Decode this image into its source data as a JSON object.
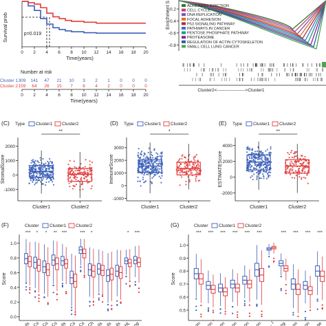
{
  "colors": {
    "cluster1": "#3a5fb8",
    "cluster2": "#e23b3b",
    "axis": "#222222",
    "grid": "#999999"
  },
  "chart_data": [
    {
      "type": "line",
      "panel": "survival",
      "ylabel": "Survival prob",
      "xlabel": "Time(years)",
      "xlim": [
        0,
        20
      ],
      "xticks": [
        0,
        2,
        4,
        6,
        8,
        10,
        12,
        14,
        16,
        18,
        20
      ],
      "pvalue": "p=0.019",
      "median_marker_x": 4,
      "series": [
        {
          "name": "Cluster 1",
          "x": [
            0,
            1,
            2,
            3,
            4,
            5,
            6,
            7,
            8,
            10,
            12,
            15,
            20
          ],
          "y": [
            1.0,
            0.9,
            0.8,
            0.62,
            0.5,
            0.42,
            0.38,
            0.35,
            0.33,
            0.31,
            0.3,
            0.3,
            0.3
          ]
        },
        {
          "name": "Cluster 2",
          "x": [
            0,
            1,
            2,
            3,
            4,
            5,
            6,
            7,
            8,
            10,
            12,
            15,
            20
          ],
          "y": [
            1.0,
            0.97,
            0.94,
            0.86,
            0.74,
            0.66,
            0.62,
            0.58,
            0.56,
            0.54,
            0.52,
            0.52,
            0.52
          ]
        }
      ],
      "risk_table": {
        "title": "Number at risk",
        "xlabel": "Time(years)",
        "rows": [
          {
            "name": "Cluster 1",
            "counts": [
              309,
              141,
              47,
              21,
              10,
              3,
              2,
              1,
              0,
              0,
              0
            ]
          },
          {
            "name": "Cluster 2",
            "counts": [
              159,
              64,
              26,
              15,
              7,
              6,
              4,
              2,
              0,
              0,
              0
            ]
          }
        ]
      }
    },
    {
      "type": "line",
      "panel": "gsea",
      "ylabel": "Enrichment S",
      "yticks": [
        -0.2,
        -0.4,
        -0.6,
        -0.8
      ],
      "xlabel_left": "Cluster2",
      "xlabel_right": "Cluster1",
      "arrow": "<------------------->",
      "legend": [
        {
          "label": "ADHERENS JUNCTION",
          "color": "#2f7a2f"
        },
        {
          "label": "CELL CYCLE",
          "color": "#c53b7a"
        },
        {
          "label": "DNA REPLICATION",
          "color": "#7a4fb2"
        },
        {
          "label": "FOCAL ADHESION",
          "color": "#d86f2a"
        },
        {
          "label": "P53 SIGNALING PATHWAY",
          "color": "#b03030"
        },
        {
          "label": "PATHWAYS IN CANCER",
          "color": "#3a74c9"
        },
        {
          "label": "PENTOSE PHOSPHATE PATHWAY",
          "color": "#1e9a8a"
        },
        {
          "label": "PROTEASOME",
          "color": "#8a2a8a"
        },
        {
          "label": "REGULATION OF ACTIN CYTOSKELETON",
          "color": "#2a5fa0"
        },
        {
          "label": "SMALL CELL LUNG CANCER",
          "color": "#4fa34f"
        }
      ]
    },
    {
      "type": "box",
      "panel": "C",
      "label": "(C)",
      "legend_title": "Type",
      "legend": [
        "Cluster1",
        "Cluster2"
      ],
      "ylabel": "StromalScore",
      "categories": [
        "Cluster1",
        "Cluster2"
      ],
      "significance": "**",
      "ylim": [
        -1800,
        2600
      ],
      "yticks": [
        -1000,
        0,
        1000,
        2000
      ],
      "boxes": [
        {
          "q1": -150,
          "median": 250,
          "q3": 650,
          "min": -1300,
          "max": 1700
        },
        {
          "q1": -450,
          "median": 50,
          "q3": 450,
          "min": -1600,
          "max": 1600
        }
      ]
    },
    {
      "type": "box",
      "panel": "D",
      "label": "(D)",
      "legend_title": "Type",
      "legend": [
        "Cluster1",
        "Cluster2"
      ],
      "ylabel": "ImmuneScore",
      "categories": [
        "Cluster1",
        "Cluster2"
      ],
      "significance": "*",
      "ylim": [
        -1200,
        3800
      ],
      "yticks": [
        -1000,
        0,
        1000,
        2000,
        3000
      ],
      "boxes": [
        {
          "q1": 1050,
          "median": 1550,
          "q3": 2050,
          "min": -600,
          "max": 3400
        },
        {
          "q1": 850,
          "median": 1350,
          "q3": 1850,
          "min": -300,
          "max": 3300
        }
      ]
    },
    {
      "type": "box",
      "panel": "E",
      "label": "(E)",
      "legend_title": "Type",
      "legend": [
        "Cluster1",
        "Cluster2"
      ],
      "ylabel": "ESTIMATEScore",
      "categories": [
        "Cluster1",
        "Cluster2"
      ],
      "significance": "**",
      "ylim": [
        -3000,
        5000
      ],
      "yticks": [
        -2000,
        0,
        2000,
        4000
      ],
      "boxes": [
        {
          "q1": 900,
          "median": 1900,
          "q3": 2800,
          "min": -1600,
          "max": 4500
        },
        {
          "q1": 500,
          "median": 1400,
          "q3": 2200,
          "min": -2000,
          "max": 4200
        }
      ]
    },
    {
      "type": "box",
      "panel": "F",
      "label": "(F)",
      "legend_title": "Cluster",
      "legend": [
        "Cluster1",
        "Cluster2"
      ],
      "ylabel": "Score",
      "ylim": [
        -0.05,
        1.08
      ],
      "yticks": [
        0.0,
        0.2,
        0.4,
        0.6,
        0.8,
        1.0
      ],
      "significance": [
        "***",
        "*",
        "*",
        "**",
        "***",
        "",
        "***",
        "*",
        "",
        "",
        "",
        "*",
        "***"
      ],
      "xtick_labels": [
        "ils",
        "Cs",
        "Cs",
        "Cs",
        "Ils",
        "Cs",
        "Cs",
        "Ch",
        "ils",
        "ils",
        "ils",
        "HL",
        "ng"
      ],
      "groups": [
        {
          "c1": [
            0.72,
            0.79,
            0.86
          ],
          "c2": [
            0.68,
            0.75,
            0.82
          ]
        },
        {
          "c1": [
            0.66,
            0.74,
            0.81
          ],
          "c2": [
            0.62,
            0.7,
            0.78
          ]
        },
        {
          "c1": [
            0.6,
            0.68,
            0.76
          ],
          "c2": [
            0.56,
            0.64,
            0.72
          ]
        },
        {
          "c1": [
            0.7,
            0.77,
            0.84
          ],
          "c2": [
            0.64,
            0.72,
            0.8
          ]
        },
        {
          "c1": [
            0.7,
            0.76,
            0.82
          ],
          "c2": [
            0.66,
            0.72,
            0.78
          ]
        },
        {
          "c1": [
            0.45,
            0.53,
            0.62
          ],
          "c2": [
            0.4,
            0.48,
            0.58
          ]
        },
        {
          "c1": [
            0.86,
            0.91,
            0.95
          ],
          "c2": [
            0.8,
            0.86,
            0.92
          ]
        },
        {
          "c1": [
            0.56,
            0.64,
            0.72
          ],
          "c2": [
            0.54,
            0.62,
            0.7
          ]
        },
        {
          "c1": [
            0.58,
            0.65,
            0.72
          ],
          "c2": [
            0.56,
            0.63,
            0.7
          ]
        },
        {
          "c1": [
            0.48,
            0.56,
            0.64
          ],
          "c2": [
            0.5,
            0.58,
            0.66
          ]
        },
        {
          "c1": [
            0.55,
            0.62,
            0.7
          ],
          "c2": [
            0.52,
            0.6,
            0.68
          ]
        },
        {
          "c1": [
            0.72,
            0.76,
            0.8
          ],
          "c2": [
            0.68,
            0.73,
            0.78
          ]
        },
        {
          "c1": [
            0.72,
            0.77,
            0.82
          ],
          "c2": [
            0.68,
            0.74,
            0.8
          ]
        }
      ]
    },
    {
      "type": "box",
      "panel": "G",
      "label": "(G)",
      "legend_title": "Cluster",
      "legend": [
        "Cluster1",
        "Cluster2"
      ],
      "ylabel": "Score",
      "ylim": [
        0.42,
        1.06
      ],
      "yticks": [
        0.5,
        0.6,
        0.7,
        0.8,
        0.9,
        1.0
      ],
      "significance": [
        "***",
        "***",
        "***",
        "***",
        "***",
        "***",
        "",
        "***",
        "***",
        "***",
        "***"
      ],
      "xtick_labels": [
        "on",
        "on",
        "on",
        "on",
        "on",
        "on",
        "... l",
        "ng",
        "on",
        "on",
        "ge"
      ],
      "groups": [
        {
          "c1": [
            0.74,
            0.78,
            0.82
          ],
          "c2": [
            0.7,
            0.74,
            0.78
          ]
        },
        {
          "c1": [
            0.66,
            0.69,
            0.72
          ],
          "c2": [
            0.63,
            0.66,
            0.69
          ]
        },
        {
          "c1": [
            0.64,
            0.67,
            0.7
          ],
          "c2": [
            0.61,
            0.64,
            0.67
          ]
        },
        {
          "c1": [
            0.67,
            0.7,
            0.73
          ],
          "c2": [
            0.64,
            0.67,
            0.7
          ]
        },
        {
          "c1": [
            0.7,
            0.73,
            0.76
          ],
          "c2": [
            0.67,
            0.7,
            0.73
          ]
        },
        {
          "c1": [
            0.76,
            0.81,
            0.86
          ],
          "c2": [
            0.72,
            0.77,
            0.82
          ]
        },
        {
          "c1": [
            0.96,
            0.97,
            0.98
          ],
          "c2": [
            0.97,
            0.98,
            0.99
          ]
        },
        {
          "c1": [
            0.84,
            0.86,
            0.88
          ],
          "c2": [
            0.8,
            0.82,
            0.84
          ]
        },
        {
          "c1": [
            0.66,
            0.7,
            0.74
          ],
          "c2": [
            0.62,
            0.66,
            0.7
          ]
        },
        {
          "c1": [
            0.66,
            0.69,
            0.72
          ],
          "c2": [
            0.62,
            0.65,
            0.68
          ]
        },
        {
          "c1": [
            0.76,
            0.8,
            0.84
          ],
          "c2": [
            0.72,
            0.76,
            0.8
          ]
        }
      ]
    }
  ]
}
